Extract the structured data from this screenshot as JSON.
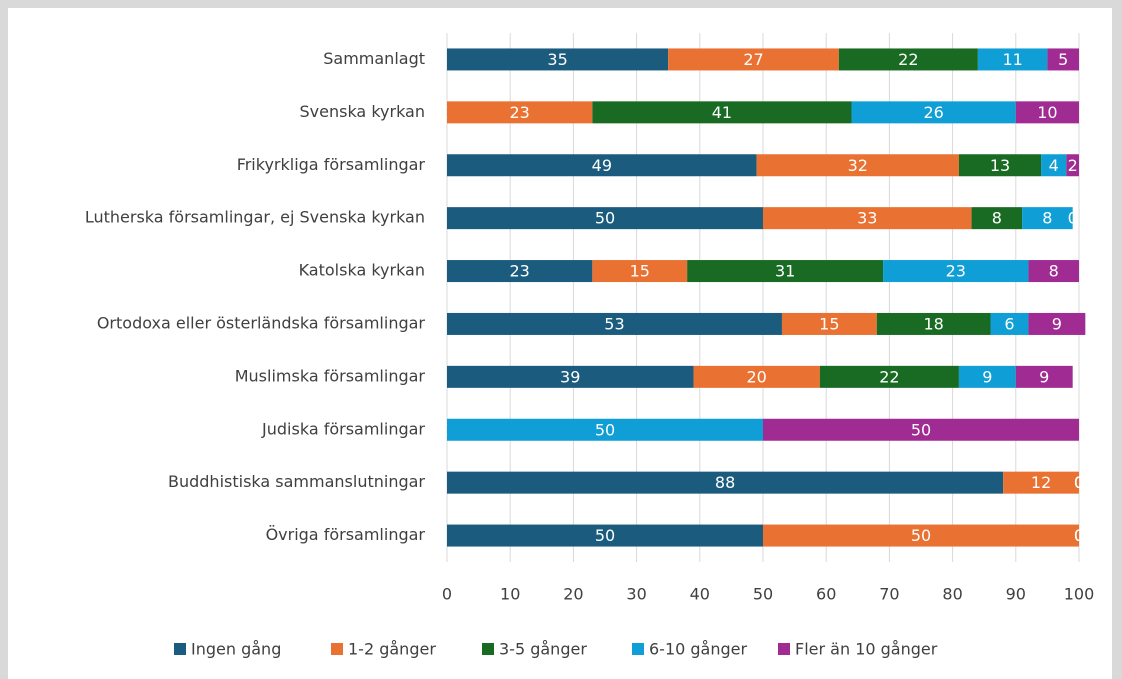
{
  "chart_data": {
    "type": "stacked_barh",
    "categories": [
      "Sammanlagt",
      "Svenska kyrkan",
      "Frikyrkliga församlingar",
      "Lutherska församlingar, ej Svenska kyrkan",
      "Katolska kyrkan",
      "Ortodoxa eller österländska församlingar",
      "Muslimska församlingar",
      "Judiska församlingar",
      "Buddhistiska sammanslutningar",
      "Övriga församlingar"
    ],
    "series": [
      {
        "name": "Ingen gång",
        "color": "#1b5c7e",
        "values": [
          35,
          0,
          49,
          50,
          23,
          53,
          39,
          0,
          88,
          50
        ]
      },
      {
        "name": "1-2 gånger",
        "color": "#e97132",
        "values": [
          27,
          23,
          32,
          33,
          15,
          15,
          20,
          0,
          12,
          50
        ]
      },
      {
        "name": "3-5 gånger",
        "color": "#196b24",
        "values": [
          22,
          41,
          13,
          8,
          31,
          18,
          22,
          0,
          0,
          0
        ]
      },
      {
        "name": "6-10 gånger",
        "color": "#0f9ed5",
        "values": [
          11,
          26,
          4,
          8,
          23,
          6,
          9,
          50,
          0,
          0
        ]
      },
      {
        "name": "Fler än 10 gånger",
        "color": "#a02b93",
        "values": [
          5,
          10,
          2,
          0,
          8,
          9,
          9,
          50,
          0,
          0
        ]
      }
    ],
    "xlim": [
      0,
      100
    ],
    "xticks": [
      0,
      10,
      20,
      30,
      40,
      50,
      60,
      70,
      80,
      90,
      100
    ],
    "grid": true,
    "legend": "bottom"
  }
}
